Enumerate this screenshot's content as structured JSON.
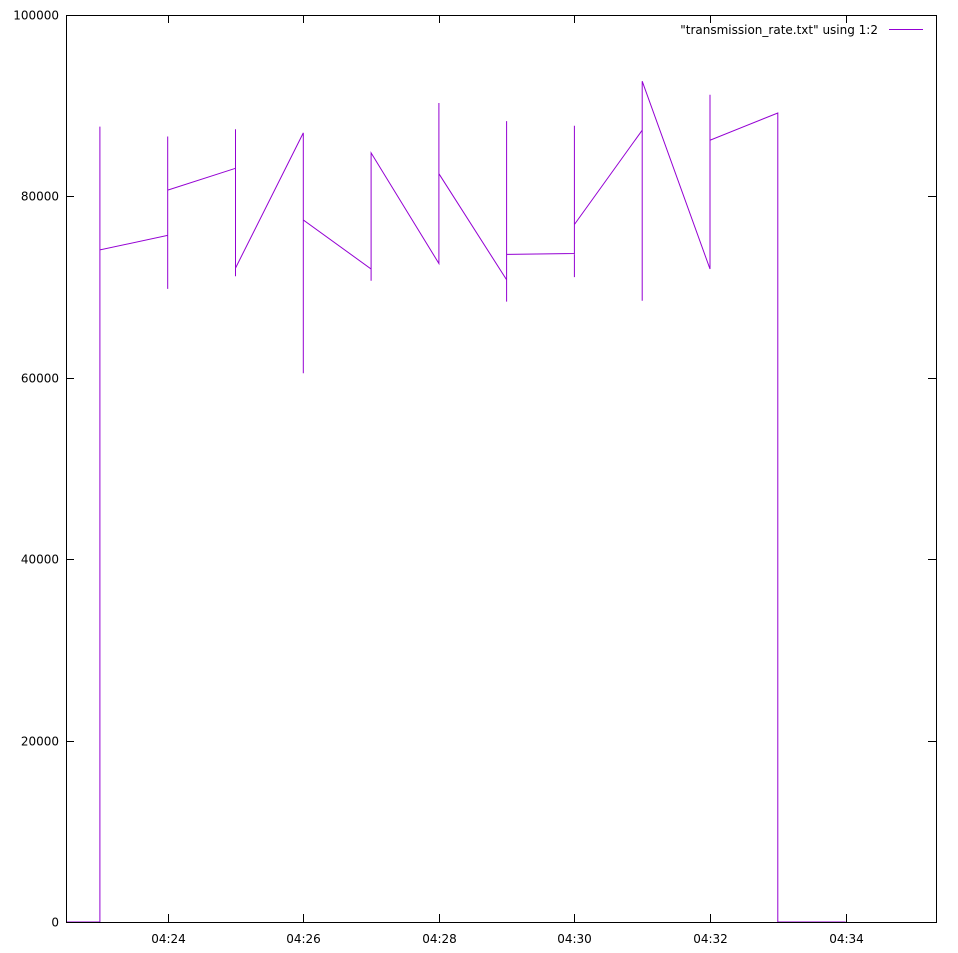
{
  "chart_data": {
    "type": "line",
    "title": "",
    "xlabel": "",
    "ylabel": "",
    "x_format": "HH:MM",
    "xlim": [
      "04:22:30",
      "04:35:20"
    ],
    "ylim": [
      0,
      100000
    ],
    "x_ticks": [
      "04:24",
      "04:26",
      "04:28",
      "04:30",
      "04:32",
      "04:34"
    ],
    "y_ticks": [
      0,
      20000,
      40000,
      60000,
      80000,
      100000
    ],
    "grid": false,
    "legend": {
      "placement": "top-right",
      "entries": [
        "\"transmission_rate.txt\" using 1:2"
      ]
    },
    "series": [
      {
        "name": "\"transmission_rate.txt\" using 1:2",
        "color": "#9400d3",
        "points": [
          [
            "04:22:30",
            0
          ],
          [
            "04:23:00",
            0
          ],
          [
            "04:23:00",
            87700
          ],
          [
            "04:23:00",
            67500
          ],
          [
            "04:23:00",
            74100
          ],
          [
            "04:24:00",
            75700
          ],
          [
            "04:24:00",
            86600
          ],
          [
            "04:24:00",
            69800
          ],
          [
            "04:24:00",
            80700
          ],
          [
            "04:25:00",
            83100
          ],
          [
            "04:25:00",
            87400
          ],
          [
            "04:25:00",
            71200
          ],
          [
            "04:25:00",
            72100
          ],
          [
            "04:26:00",
            87000
          ],
          [
            "04:26:00",
            60500
          ],
          [
            "04:26:00",
            77400
          ],
          [
            "04:27:00",
            72000
          ],
          [
            "04:27:00",
            80500
          ],
          [
            "04:27:00",
            70700
          ],
          [
            "04:27:00",
            84800
          ],
          [
            "04:28:00",
            72600
          ],
          [
            "04:28:00",
            90300
          ],
          [
            "04:28:00",
            82500
          ],
          [
            "04:29:00",
            70800
          ],
          [
            "04:29:00",
            88300
          ],
          [
            "04:29:00",
            68400
          ],
          [
            "04:29:00",
            73600
          ],
          [
            "04:30:00",
            73700
          ],
          [
            "04:30:00",
            87800
          ],
          [
            "04:30:00",
            71100
          ],
          [
            "04:30:00",
            76900
          ],
          [
            "04:31:00",
            87300
          ],
          [
            "04:31:00",
            68500
          ],
          [
            "04:31:00",
            92700
          ],
          [
            "04:32:00",
            72000
          ],
          [
            "04:32:00",
            91200
          ],
          [
            "04:32:00",
            86200
          ],
          [
            "04:33:00",
            89200
          ],
          [
            "04:33:00",
            0
          ],
          [
            "04:34:00",
            0
          ]
        ]
      }
    ]
  }
}
